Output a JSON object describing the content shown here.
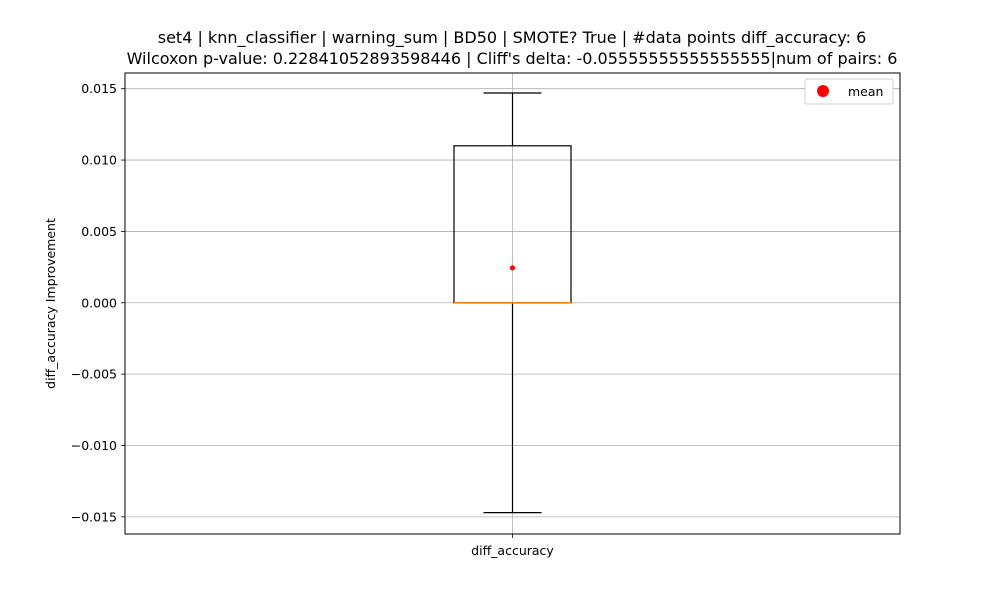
{
  "chart_data": {
    "type": "box",
    "title_line1": "set4 | knn_classifier | warning_sum | BD50 | SMOTE? True | #data points diff_accuracy: 6",
    "title_line2": "Wilcoxon p-value: 0.22841052893598446 | Cliff's delta: -0.05555555555555555|num of pairs: 6",
    "xlabel": "",
    "ylabel": "diff_accuracy Improvement",
    "categories": [
      "diff_accuracy"
    ],
    "ylim": [
      -0.0162,
      0.0161
    ],
    "yticks": [
      -0.015,
      -0.01,
      -0.005,
      0.0,
      0.005,
      0.01,
      0.015
    ],
    "ytick_labels": [
      "−0.015",
      "−0.010",
      "−0.005",
      "0.000",
      "0.005",
      "0.010",
      "0.015"
    ],
    "grid": true,
    "legend": {
      "placement": "top-right",
      "entries": [
        {
          "label": "mean",
          "color": "#ff0000"
        }
      ]
    },
    "box": {
      "whisker_low": -0.0147,
      "q1": 0.0,
      "median": 0.0,
      "q3": 0.011,
      "whisker_high": 0.0147,
      "mean": 0.00245
    },
    "colors": {
      "box": "#000000",
      "median": "#ff7f0e",
      "mean": "#ff0000",
      "grid": "#b0b0b0"
    }
  }
}
